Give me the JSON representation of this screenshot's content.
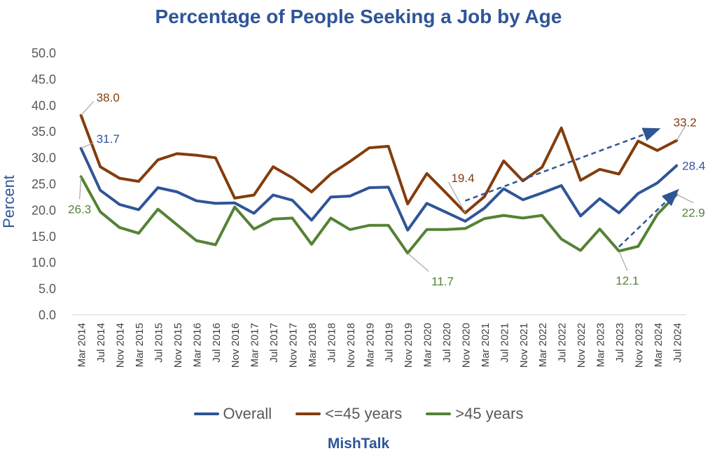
{
  "chart_data": {
    "type": "line",
    "title": "Percentage of People Seeking a Job by Age",
    "ylabel": "Percent",
    "xlabel": "",
    "ylim": [
      0,
      50
    ],
    "yticks": [
      "0.0",
      "5.0",
      "10.0",
      "15.0",
      "20.0",
      "25.0",
      "30.0",
      "35.0",
      "40.0",
      "45.0",
      "50.0"
    ],
    "grid": false,
    "legend_position": "bottom",
    "categories": [
      "Mar 2014",
      "Jul 2014",
      "Nov 2014",
      "Mar 2015",
      "Jul 2015",
      "Nov 2015",
      "Mar 2016",
      "Jul 2016",
      "Nov 2016",
      "Mar 2017",
      "Jul 2017",
      "Nov 2017",
      "Mar 2018",
      "Jul 2018",
      "Nov 2018",
      "Mar 2019",
      "Jul 2019",
      "Nov 2019",
      "Mar 2020",
      "Jul 2020",
      "Nov 2020",
      "Mar 2021",
      "Jul 2021",
      "Nov 2021",
      "Mar 2022",
      "Jul 2022",
      "Nov 2022",
      "Mar 2023",
      "Jul 2023",
      "Nov 2023",
      "Mar 2024",
      "Jul 2024"
    ],
    "series": [
      {
        "name": "Overall",
        "color": "#2f5597",
        "values": [
          31.7,
          23.7,
          21.0,
          20.0,
          24.2,
          23.4,
          21.7,
          21.2,
          21.3,
          19.3,
          22.8,
          21.8,
          18.0,
          22.4,
          22.6,
          24.2,
          24.3,
          16.1,
          21.2,
          19.5,
          17.8,
          20.3,
          24.0,
          21.9,
          23.2,
          24.6,
          18.8,
          22.1,
          19.4,
          23.1,
          25.1,
          28.4
        ]
      },
      {
        "name": "<=45 years",
        "color": "#843c0c",
        "values": [
          38.0,
          28.2,
          26.0,
          25.4,
          29.5,
          30.7,
          30.4,
          29.9,
          22.2,
          22.8,
          28.2,
          26.1,
          23.4,
          26.8,
          29.2,
          31.8,
          32.1,
          21.1,
          26.9,
          23.2,
          19.4,
          22.5,
          29.3,
          25.5,
          28.1,
          35.6,
          25.6,
          27.7,
          26.8,
          33.1,
          31.3,
          33.2
        ]
      },
      {
        "name": ">45 years",
        "color": "#548235",
        "values": [
          26.3,
          19.6,
          16.6,
          15.5,
          20.1,
          17.1,
          14.1,
          13.3,
          20.5,
          16.3,
          18.2,
          18.4,
          13.4,
          18.4,
          16.2,
          17.0,
          17.0,
          11.7,
          16.2,
          16.2,
          16.4,
          18.3,
          18.9,
          18.4,
          18.9,
          14.4,
          12.2,
          16.3,
          12.1,
          13.0,
          19.1,
          22.9
        ]
      }
    ],
    "annotations": [
      {
        "text": "38.0",
        "series": 1,
        "index": 0,
        "color": "#843c0c"
      },
      {
        "text": "31.7",
        "series": 0,
        "index": 0,
        "color": "#2f5597"
      },
      {
        "text": "26.3",
        "series": 2,
        "index": 0,
        "color": "#548235"
      },
      {
        "text": "19.4",
        "series": 1,
        "index": 20,
        "color": "#843c0c"
      },
      {
        "text": "11.7",
        "series": 2,
        "index": 17,
        "color": "#548235"
      },
      {
        "text": "12.1",
        "series": 2,
        "index": 28,
        "color": "#548235"
      },
      {
        "text": "33.2",
        "series": 1,
        "index": 31,
        "color": "#843c0c"
      },
      {
        "text": "28.4",
        "series": 0,
        "index": 31,
        "color": "#2f5597"
      },
      {
        "text": "22.9",
        "series": 2,
        "index": 31,
        "color": "#548235"
      }
    ],
    "trend_arrows": [
      {
        "from_index": 20,
        "from_value": 21.7,
        "to_index": 30,
        "to_value": 35.3,
        "color": "#2f5597"
      },
      {
        "from_index": 28,
        "from_value": 12.9,
        "to_index": 31,
        "to_value": 23.5,
        "color": "#2f5597"
      }
    ]
  },
  "brand": "MishTalk"
}
